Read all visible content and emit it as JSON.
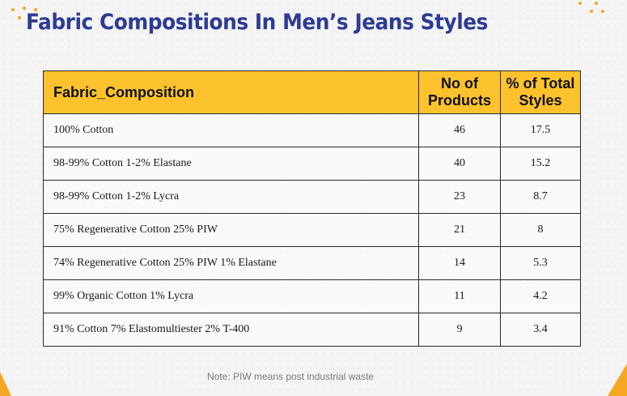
{
  "title": "Fabric Compositions In Men’s Jeans Styles",
  "table": {
    "headers": [
      "Fabric_Composition",
      "No of Products",
      "% of Total Styles"
    ],
    "rows": [
      [
        "100% Cotton",
        "46",
        "17.5"
      ],
      [
        "98-99% Cotton 1-2% Elastane",
        "40",
        "15.2"
      ],
      [
        "98-99% Cotton 1-2% Lycra",
        "23",
        "8.7"
      ],
      [
        "75% Regenerative Cotton 25% PIW",
        "21",
        "8"
      ],
      [
        "74% Regenerative Cotton 25% PIW 1% Elastane",
        "14",
        "5.3"
      ],
      [
        "99% Organic Cotton 1% Lycra",
        "11",
        "4.2"
      ],
      [
        "91% Cotton 7% Elastomultiester 2% T-400",
        "9",
        "3.4"
      ]
    ]
  },
  "note": "Note: PIW means post industrial waste",
  "colors": {
    "title": "#2e3b93",
    "header_bg": "#fbc22e",
    "accent": "#f5a623"
  }
}
